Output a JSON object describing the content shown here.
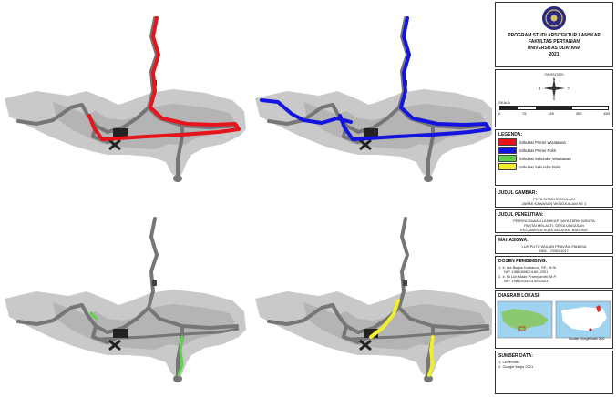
{
  "title_block": {
    "line1": "PROGRAM STUDI ARSITEKTUR LANSKAP",
    "line2": "FAKULTAS PERTANIAN",
    "line3": "UNIVERSITAS UDAYANA",
    "year": "2021"
  },
  "orientation": {
    "label": "ORIENTASI",
    "n": "N",
    "s": "S",
    "e": "T",
    "w": "B"
  },
  "scale": {
    "label": "SKALA",
    "ticks": [
      "0",
      "75",
      "150",
      "300",
      "450"
    ]
  },
  "legend": {
    "title": "LEGENDA:",
    "items": [
      {
        "label": "Sirkulasi Primer Wisatawan",
        "color": "#e8141c"
      },
      {
        "label": "Sirkulasi Primer Pokir",
        "color": "#1414e0"
      },
      {
        "label": "Sirkulasi Sekunder Wisatawan",
        "color": "#5fd14a"
      },
      {
        "label": "Sirkulasi Sekunder Pokir",
        "color": "#f0ef2a"
      }
    ]
  },
  "drawing": {
    "title": "JUDUL GAMBAR:",
    "line1": "PETA SITASI SIRKULASI",
    "line2": "JARAK KAWASAN WISATA ALAM KE 1"
  },
  "research": {
    "title": "JUDUL PENELITIAN:",
    "line1": "PERENCANAAN LANSKAP DAYA TARIK WISATA",
    "line2": "PANTAI MELASTI, DESA UNGASAN",
    "line3": "KECAMATAN KUTA SELATAN, BADUNG"
  },
  "student": {
    "title": "MAHASISWA:",
    "name": "LUH PUTU WULAN PRAVINA PANDSA",
    "nim": "NIM. 1705541017"
  },
  "supervisors": {
    "title": "DOSEN PEMBIMBING:",
    "p1_name": "1. Ir. Ida Bagus Kadianus, SP., M.Si",
    "p1_nip": "NIP. 198108062018012001",
    "p2_name": "2. Ir. Ni Luh Made Pramiyanthi, M.P.",
    "p2_nip": "NIP. 198804302019032001"
  },
  "location": {
    "title": "DIAGRAM LOKASI:",
    "caption": "Sumber: Google Earth 2021"
  },
  "source": {
    "title": "SUMBER DATA:",
    "item1": "1. Observasi",
    "item2": "2. Google Maps 2021"
  },
  "map_colors": {
    "water": "#ffffff",
    "land": "#c9c9c9",
    "road": "#767676",
    "dark": "#222222"
  }
}
